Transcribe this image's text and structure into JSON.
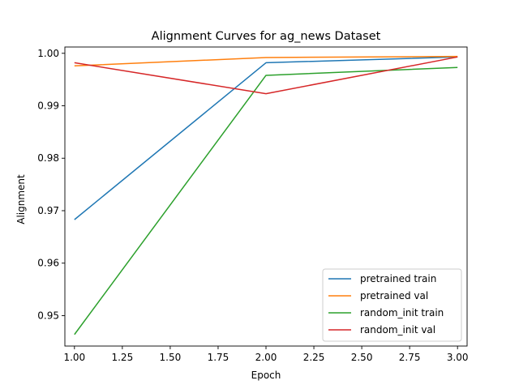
{
  "chart_data": {
    "type": "line",
    "title": "Alignment Curves for ag_news Dataset",
    "xlabel": "Epoch",
    "ylabel": "Alignment",
    "x": [
      1.0,
      2.0,
      3.0
    ],
    "xlim": [
      0.95,
      3.05
    ],
    "ylim": [
      0.9442,
      1.0012
    ],
    "xticks": [
      "1.00",
      "1.25",
      "1.50",
      "1.75",
      "2.00",
      "2.25",
      "2.50",
      "2.75",
      "3.00"
    ],
    "xtick_values": [
      1.0,
      1.25,
      1.5,
      1.75,
      2.0,
      2.25,
      2.5,
      2.75,
      3.0
    ],
    "yticks": [
      "0.95",
      "0.96",
      "0.97",
      "0.98",
      "0.99",
      "1.00"
    ],
    "ytick_values": [
      0.95,
      0.96,
      0.97,
      0.98,
      0.99,
      1.0
    ],
    "grid": false,
    "legend_position": "lower right",
    "series": [
      {
        "name": "pretrained train",
        "color": "#1f77b4",
        "values": [
          0.9683,
          0.9982,
          0.9993
        ]
      },
      {
        "name": "pretrained val",
        "color": "#ff7f0e",
        "values": [
          0.9976,
          0.9992,
          0.9994
        ]
      },
      {
        "name": "random_init train",
        "color": "#2ca02c",
        "values": [
          0.9464,
          0.9958,
          0.9973
        ]
      },
      {
        "name": "random_init val",
        "color": "#d62728",
        "values": [
          0.9982,
          0.9923,
          0.9993
        ]
      }
    ]
  }
}
